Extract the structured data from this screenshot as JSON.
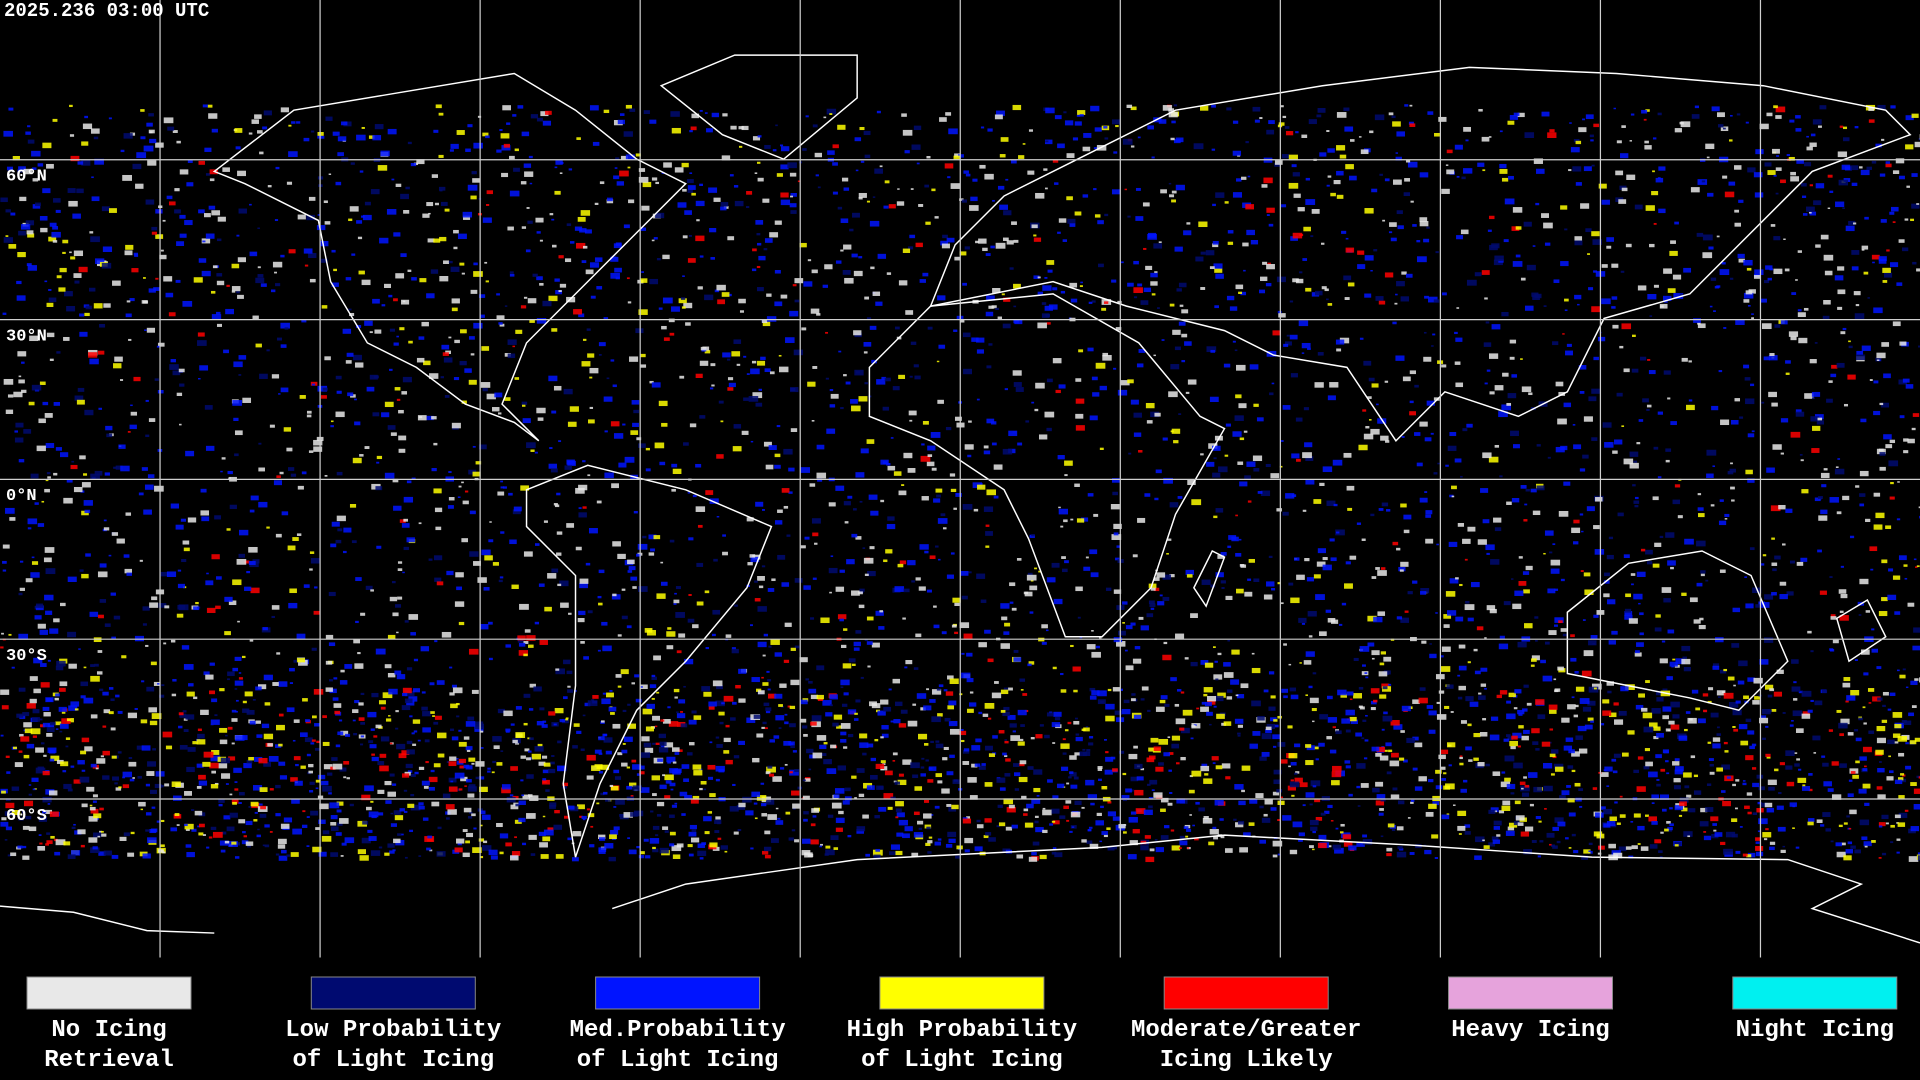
{
  "header": {
    "timestamp": "2025.236 03:00 UTC"
  },
  "map": {
    "latitude_labels": [
      "60°N",
      "30°N",
      "0°N",
      "30°S",
      "60°S"
    ]
  },
  "legend": {
    "items": [
      {
        "lines": [
          "No Icing",
          "Retrieval"
        ],
        "color": "#e8e8e8"
      },
      {
        "lines": [
          "Low Probability",
          "of Light Icing"
        ],
        "color": "#000a70"
      },
      {
        "lines": [
          "Med.Probability",
          "of Light Icing"
        ],
        "color": "#0014ff"
      },
      {
        "lines": [
          "High Probability",
          "of Light Icing"
        ],
        "color": "#ffff00"
      },
      {
        "lines": [
          "Moderate/Greater",
          "Icing Likely"
        ],
        "color": "#ff0000"
      },
      {
        "lines": [
          "Heavy Icing"
        ],
        "color": "#e6a3dc"
      },
      {
        "lines": [
          "Night Icing"
        ],
        "color": "#00f0f0"
      }
    ]
  }
}
